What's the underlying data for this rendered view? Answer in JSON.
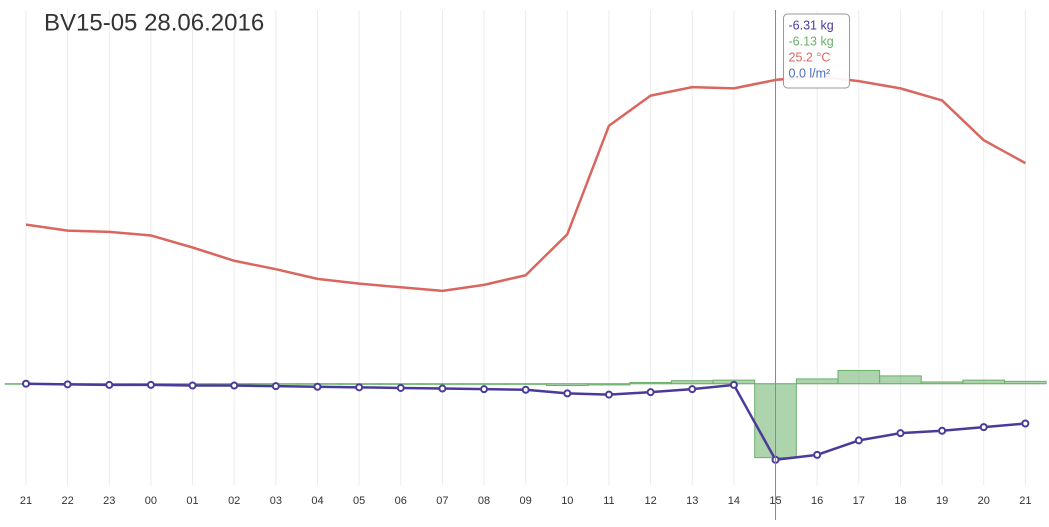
{
  "chart_data": {
    "type": "combo",
    "title": "BV15-05 28.06.2016",
    "categories": [
      "21",
      "22",
      "23",
      "00",
      "01",
      "02",
      "03",
      "04",
      "05",
      "06",
      "07",
      "08",
      "09",
      "10",
      "11",
      "12",
      "13",
      "14",
      "15",
      "16",
      "17",
      "18",
      "19",
      "20",
      "21"
    ],
    "ylim": [
      -8.4,
      31
    ],
    "grid": true,
    "series": [
      {
        "type": "bar",
        "color": "#6ab06a",
        "values": [
          0,
          -0.02,
          -0.03,
          -0.03,
          -0.03,
          -0.03,
          -0.04,
          -0.04,
          -0.05,
          -0.05,
          -0.05,
          -0.05,
          -0.05,
          -0.15,
          -0.1,
          0.1,
          0.25,
          0.3,
          -6.13,
          0.4,
          1.1,
          0.65,
          0.15,
          0.3,
          0.2
        ]
      },
      {
        "type": "line",
        "color": "#d9665f",
        "values": [
          13.2,
          12.7,
          12.6,
          12.3,
          11.3,
          10.2,
          9.5,
          8.7,
          8.3,
          8.0,
          7.7,
          8.2,
          9.0,
          12.4,
          21.4,
          23.9,
          24.6,
          24.5,
          25.2,
          25.5,
          25.1,
          24.5,
          23.5,
          20.2,
          18.3
        ]
      },
      {
        "type": "line",
        "color": "#4a3a9a",
        "markers": true,
        "values": [
          0,
          -0.05,
          -0.1,
          -0.1,
          -0.15,
          -0.15,
          -0.2,
          -0.25,
          -0.3,
          -0.35,
          -0.4,
          -0.45,
          -0.5,
          -0.8,
          -0.9,
          -0.7,
          -0.45,
          -0.1,
          -6.31,
          -5.9,
          -4.7,
          -4.1,
          -3.9,
          -3.6,
          -3.3
        ]
      }
    ],
    "tooltip": [
      {
        "text": "-6.31 kg",
        "color": "#4a3a9a"
      },
      {
        "text": "-6.13 kg",
        "color": "#6ab06a"
      },
      {
        "text": "25.2 °C",
        "color": "#d9665f"
      },
      {
        "text": "0.0 l/m²",
        "color": "#4a6fc0"
      }
    ]
  }
}
